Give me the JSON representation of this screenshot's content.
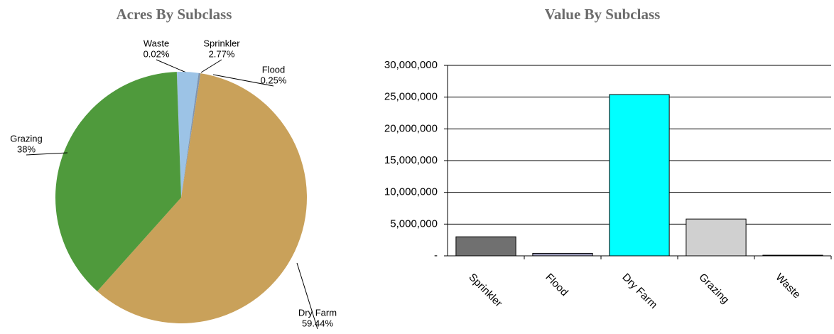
{
  "chart_data": [
    {
      "type": "pie",
      "title": "Acres By Subclass",
      "categories": [
        "Waste",
        "Sprinkler",
        "Flood",
        "Dry Farm",
        "Grazing"
      ],
      "values": [
        0.02,
        2.77,
        0.25,
        59.44,
        38
      ],
      "value_labels": [
        "0.02%",
        "2.77%",
        "0.25%",
        "59.44%",
        "38%"
      ],
      "colors": [
        "#8a8a8a",
        "#9cc3e6",
        "#7f95b0",
        "#c9a15a",
        "#4f9a3c"
      ]
    },
    {
      "type": "bar",
      "title": "Value By Subclass",
      "categories": [
        "Sprinkler",
        "Flood",
        "Dry Farm",
        "Grazing",
        "Waste"
      ],
      "values": [
        3000000,
        400000,
        25400000,
        5800000,
        100000
      ],
      "colors": [
        "#707070",
        "#9a9ab8",
        "#00ffff",
        "#d0d0d0",
        "#333333"
      ],
      "ylim": [
        0,
        30000000
      ],
      "yticks": [
        {
          "value": 0,
          "label": "-"
        },
        {
          "value": 5000000,
          "label": "5,000,000"
        },
        {
          "value": 10000000,
          "label": "10,000,000"
        },
        {
          "value": 15000000,
          "label": "15,000,000"
        },
        {
          "value": 20000000,
          "label": "20,000,000"
        },
        {
          "value": 25000000,
          "label": "25,000,000"
        },
        {
          "value": 30000000,
          "label": "30,000,000"
        }
      ],
      "grid": true
    }
  ]
}
